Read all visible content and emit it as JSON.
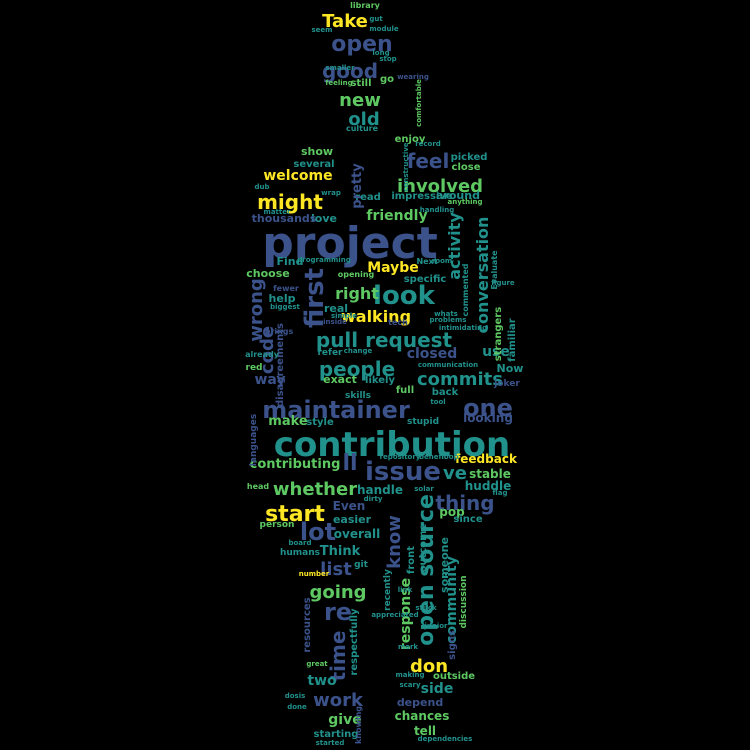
{
  "palette": [
    "#440154",
    "#3b528b",
    "#21918c",
    "#5ec962",
    "#fde725"
  ],
  "words": [
    {
      "text": "project",
      "color": "#3b528b"
    },
    {
      "text": "contribution",
      "color": "#21918c"
    },
    {
      "text": "maintainer",
      "color": "#3b528b"
    },
    {
      "text": "issue",
      "color": "#3b528b"
    },
    {
      "text": "pull request",
      "color": "#21918c"
    },
    {
      "text": "look",
      "color": "#21918c"
    },
    {
      "text": "people",
      "color": "#21918c"
    },
    {
      "text": "first",
      "color": "#3b528b"
    },
    {
      "text": "open source",
      "color": "#21918c"
    },
    {
      "text": "one",
      "color": "#3b528b"
    },
    {
      "text": "start",
      "color": "#fde725"
    },
    {
      "text": "might",
      "color": "#fde725"
    },
    {
      "text": "feel",
      "color": "#3b528b"
    },
    {
      "text": "involved",
      "color": "#5ec962"
    },
    {
      "text": "commits",
      "color": "#21918c"
    },
    {
      "text": "thing",
      "color": "#3b528b"
    },
    {
      "text": "lot",
      "color": "#3b528b"
    },
    {
      "text": "re",
      "color": "#3b528b"
    },
    {
      "text": "open",
      "color": "#3b528b"
    },
    {
      "text": "good",
      "color": "#3b528b"
    },
    {
      "text": "new",
      "color": "#5ec962"
    },
    {
      "text": "old",
      "color": "#21918c"
    },
    {
      "text": "Take",
      "color": "#fde725"
    },
    {
      "text": "whether",
      "color": "#5ec962"
    },
    {
      "text": "work",
      "color": "#3b528b"
    },
    {
      "text": "don",
      "color": "#fde725"
    },
    {
      "text": "time",
      "color": "#3b528b"
    },
    {
      "text": "list",
      "color": "#3b528b"
    },
    {
      "text": "going",
      "color": "#5ec962"
    },
    {
      "text": "know",
      "color": "#3b528b"
    },
    {
      "text": "code",
      "color": "#3b528b"
    },
    {
      "text": "wrong",
      "color": "#3b528b"
    },
    {
      "text": "conversation",
      "color": "#21918c"
    },
    {
      "text": "activity",
      "color": "#21918c"
    },
    {
      "text": "community",
      "color": "#21918c"
    },
    {
      "text": "response",
      "color": "#5ec962"
    },
    {
      "text": "welcome",
      "color": "#fde725"
    },
    {
      "text": "friendly",
      "color": "#5ec962"
    },
    {
      "text": "walking",
      "color": "#fde725"
    },
    {
      "text": "right",
      "color": "#5ec962"
    },
    {
      "text": "Maybe",
      "color": "#fde725"
    },
    {
      "text": "closed",
      "color": "#3b528b"
    },
    {
      "text": "ve",
      "color": "#21918c"
    },
    {
      "text": "ll",
      "color": "#3b528b"
    },
    {
      "text": "contributing",
      "color": "#5ec962"
    },
    {
      "text": "feedback",
      "color": "#fde725"
    },
    {
      "text": "looking",
      "color": "#3b528b"
    },
    {
      "text": "make",
      "color": "#5ec962"
    },
    {
      "text": "way",
      "color": "#3b528b"
    },
    {
      "text": "handle",
      "color": "#21918c"
    },
    {
      "text": "two",
      "color": "#21918c"
    },
    {
      "text": "side",
      "color": "#21918c"
    },
    {
      "text": "give",
      "color": "#5ec962"
    },
    {
      "text": "tell",
      "color": "#5ec962"
    },
    {
      "text": "chances",
      "color": "#5ec962"
    },
    {
      "text": "depend",
      "color": "#3b528b"
    },
    {
      "text": "Think",
      "color": "#21918c"
    },
    {
      "text": "Even",
      "color": "#3b528b"
    },
    {
      "text": "easier",
      "color": "#21918c"
    },
    {
      "text": "overall",
      "color": "#21918c"
    },
    {
      "text": "stable",
      "color": "#5ec962"
    },
    {
      "text": "huddle",
      "color": "#21918c"
    },
    {
      "text": "pop",
      "color": "#5ec962"
    },
    {
      "text": "since",
      "color": "#21918c"
    },
    {
      "text": "someone",
      "color": "#21918c"
    },
    {
      "text": "front",
      "color": "#21918c"
    },
    {
      "text": "outcome",
      "color": "#21918c"
    },
    {
      "text": "use",
      "color": "#21918c"
    },
    {
      "text": "familiar",
      "color": "#21918c"
    },
    {
      "text": "strangers",
      "color": "#5ec962"
    },
    {
      "text": "Now",
      "color": "#21918c"
    },
    {
      "text": "joker",
      "color": "#3b528b"
    },
    {
      "text": "exact",
      "color": "#5ec962"
    },
    {
      "text": "likely",
      "color": "#21918c"
    },
    {
      "text": "help",
      "color": "#21918c"
    },
    {
      "text": "choose",
      "color": "#5ec962"
    },
    {
      "text": "Find",
      "color": "#21918c"
    },
    {
      "text": "love",
      "color": "#21918c"
    },
    {
      "text": "thousands",
      "color": "#3b528b"
    },
    {
      "text": "read",
      "color": "#21918c"
    },
    {
      "text": "pretty",
      "color": "#3b528b"
    },
    {
      "text": "show",
      "color": "#5ec962"
    },
    {
      "text": "several",
      "color": "#21918c"
    },
    {
      "text": "picked",
      "color": "#21918c"
    },
    {
      "text": "close",
      "color": "#5ec962"
    },
    {
      "text": "around",
      "color": "#21918c"
    },
    {
      "text": "impressive",
      "color": "#21918c"
    },
    {
      "text": "enjoy",
      "color": "#5ec962"
    },
    {
      "text": "specific",
      "color": "#21918c"
    },
    {
      "text": "real",
      "color": "#21918c"
    },
    {
      "text": "still",
      "color": "#5ec962"
    },
    {
      "text": "go",
      "color": "#5ec962"
    },
    {
      "text": "culture",
      "color": "#21918c"
    },
    {
      "text": "library",
      "color": "#5ec962"
    },
    {
      "text": "resources",
      "color": "#3b528b"
    },
    {
      "text": "respectfully",
      "color": "#21918c"
    },
    {
      "text": "signs",
      "color": "#3b528b"
    },
    {
      "text": "discussion",
      "color": "#5ec962"
    },
    {
      "text": "outside",
      "color": "#5ec962"
    },
    {
      "text": "starting",
      "color": "#21918c"
    },
    {
      "text": "knowing",
      "color": "#3b528b"
    },
    {
      "text": "recently",
      "color": "#21918c"
    },
    {
      "text": "languages",
      "color": "#3b528b"
    },
    {
      "text": "style",
      "color": "#21918c"
    },
    {
      "text": "disagreements",
      "color": "#3b528b"
    },
    {
      "text": "full",
      "color": "#5ec962"
    },
    {
      "text": "back",
      "color": "#21918c"
    },
    {
      "text": "stupid",
      "color": "#21918c"
    },
    {
      "text": "skills",
      "color": "#21918c"
    },
    {
      "text": "refer",
      "color": "#21918c"
    },
    {
      "text": "red",
      "color": "#5ec962"
    },
    {
      "text": "commented",
      "color": "#21918c"
    },
    {
      "text": "Evaluate",
      "color": "#21918c"
    },
    {
      "text": "git",
      "color": "#21918c"
    },
    {
      "text": "humans",
      "color": "#21918c"
    },
    {
      "text": "person",
      "color": "#5ec962"
    },
    {
      "text": "head",
      "color": "#5ec962"
    },
    {
      "text": "fewer",
      "color": "#3b528b"
    },
    {
      "text": "opening",
      "color": "#5ec962"
    },
    {
      "text": "already",
      "color": "#21918c"
    },
    {
      "text": "brings",
      "color": "#3b528b"
    },
    {
      "text": "communication",
      "color": "#21918c"
    },
    {
      "text": "tool",
      "color": "#21918c"
    },
    {
      "text": "gut",
      "color": "#21918c"
    },
    {
      "text": "seem",
      "color": "#21918c"
    },
    {
      "text": "smaller",
      "color": "#21918c"
    },
    {
      "text": "long",
      "color": "#21918c"
    },
    {
      "text": "stop",
      "color": "#21918c"
    },
    {
      "text": "feeling",
      "color": "#5ec962"
    },
    {
      "text": "wearing",
      "color": "#3b528b"
    },
    {
      "text": "module",
      "color": "#21918c"
    },
    {
      "text": "wrap",
      "color": "#21918c"
    },
    {
      "text": "dub",
      "color": "#21918c"
    },
    {
      "text": "matter",
      "color": "#21918c"
    },
    {
      "text": "record",
      "color": "#21918c"
    },
    {
      "text": "anything",
      "color": "#5ec962"
    },
    {
      "text": "handling",
      "color": "#21918c"
    },
    {
      "text": "biggest",
      "color": "#21918c"
    },
    {
      "text": "programming",
      "color": "#21918c"
    },
    {
      "text": "room",
      "color": "#21918c"
    },
    {
      "text": "Next",
      "color": "#21918c"
    },
    {
      "text": "figure",
      "color": "#21918c"
    },
    {
      "text": "flag",
      "color": "#21918c"
    },
    {
      "text": "dirty",
      "color": "#21918c"
    },
    {
      "text": "solar",
      "color": "#21918c"
    },
    {
      "text": "loop",
      "color": "#21918c"
    },
    {
      "text": "benefit",
      "color": "#21918c"
    },
    {
      "text": "repository",
      "color": "#21918c"
    },
    {
      "text": "appreciated",
      "color": "#21918c"
    },
    {
      "text": "number",
      "color": "#fde725"
    },
    {
      "text": "board",
      "color": "#21918c"
    },
    {
      "text": "great",
      "color": "#5ec962"
    },
    {
      "text": "dosis",
      "color": "#21918c"
    },
    {
      "text": "making",
      "color": "#21918c"
    },
    {
      "text": "scary",
      "color": "#21918c"
    },
    {
      "text": "dependencies",
      "color": "#21918c"
    },
    {
      "text": "started",
      "color": "#21918c"
    },
    {
      "text": "inside",
      "color": "#3b528b"
    },
    {
      "text": "simple",
      "color": "#21918c"
    },
    {
      "text": "change",
      "color": "#21918c"
    },
    {
      "text": "tech",
      "color": "#3b528b"
    },
    {
      "text": "intimidating",
      "color": "#21918c"
    },
    {
      "text": "problems",
      "color": "#21918c"
    },
    {
      "text": "whats",
      "color": "#21918c"
    },
    {
      "text": "done",
      "color": "#21918c"
    },
    {
      "text": "comfortable",
      "color": "#5ec962"
    },
    {
      "text": "constructive",
      "color": "#21918c"
    },
    {
      "text": "stuck",
      "color": "#21918c"
    },
    {
      "text": "junior",
      "color": "#21918c"
    },
    {
      "text": "mark",
      "color": "#21918c"
    },
    {
      "text": "link",
      "color": "#21918c"
    }
  ]
}
